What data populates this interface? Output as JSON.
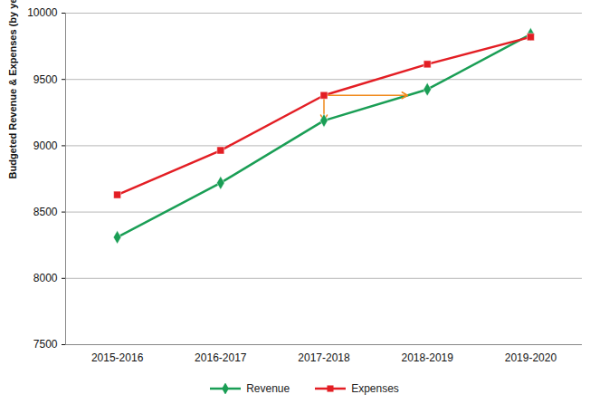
{
  "chart_data": {
    "type": "line",
    "y_label": "Budgeted Revenue & Expenses (by year)",
    "categories": [
      "2015-2016",
      "2016-2017",
      "2017-2018",
      "2018-2019",
      "2019-2020"
    ],
    "series": [
      {
        "name": "Revenue",
        "color": "#1a9e55",
        "marker": "diamond",
        "values": [
          8310,
          8720,
          9190,
          9425,
          9840
        ]
      },
      {
        "name": "Expenses",
        "color": "#e31e24",
        "marker": "square",
        "values": [
          8630,
          8965,
          9380,
          9615,
          9820
        ]
      }
    ],
    "ylim": [
      7500,
      10000
    ],
    "yticks": [
      7500,
      8000,
      8500,
      9000,
      9500,
      10000
    ],
    "grid": true,
    "legend": "bottom"
  }
}
